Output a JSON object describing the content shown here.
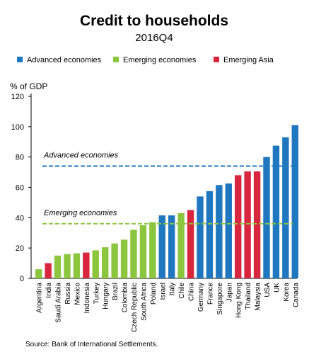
{
  "chart_data": {
    "type": "bar",
    "title": "Credit to households",
    "subtitle": "2016Q4",
    "ylabel": "% of GDP",
    "ylim": [
      0,
      120
    ],
    "yticks": [
      0,
      20,
      40,
      60,
      80,
      100,
      120
    ],
    "legend": [
      {
        "name": "Advanced economies",
        "color": "#1f77c0"
      },
      {
        "name": "Emerging economies",
        "color": "#8cc63f"
      },
      {
        "name": "Emerging Asia",
        "color": "#d7263d"
      }
    ],
    "legend_position": "top",
    "categories": [
      "Argentina",
      "India",
      "Saudi Arabia",
      "Russia",
      "Mexico",
      "Indonesia",
      "Turkey",
      "Hungary",
      "Brazil",
      "Colombia",
      "Czech Republic",
      "South Africa",
      "Poland",
      "Israel",
      "Italy",
      "Chile",
      "China",
      "Germany",
      "France",
      "Singapore",
      "Japan",
      "Hong Kong",
      "Thailand",
      "Malaysia",
      "USA",
      "UK",
      "Korea",
      "Canada"
    ],
    "values": [
      6,
      10,
      15,
      16,
      16.5,
      17,
      18.5,
      20.5,
      23,
      25.5,
      32,
      35,
      37,
      41.5,
      41.5,
      43,
      45,
      54,
      57.5,
      61.5,
      62.5,
      68,
      70.5,
      70.5,
      80,
      87.5,
      93,
      101
    ],
    "groups": [
      "Emerging economies",
      "Emerging Asia",
      "Emerging economies",
      "Emerging economies",
      "Emerging economies",
      "Emerging Asia",
      "Emerging economies",
      "Emerging economies",
      "Emerging economies",
      "Emerging economies",
      "Emerging economies",
      "Emerging economies",
      "Emerging economies",
      "Advanced economies",
      "Advanced economies",
      "Emerging economies",
      "Emerging Asia",
      "Advanced economies",
      "Advanced economies",
      "Advanced economies",
      "Advanced economies",
      "Emerging Asia",
      "Emerging Asia",
      "Emerging Asia",
      "Advanced economies",
      "Advanced economies",
      "Advanced economies",
      "Advanced economies"
    ],
    "reference_lines": [
      {
        "label": "Advanced economies",
        "value": 74,
        "color": "#1f77c0",
        "style": "dashed"
      },
      {
        "label": "Emerging economies",
        "value": 36,
        "color": "#8cc63f",
        "style": "dashed"
      }
    ],
    "grid": false
  },
  "source": "Source: Bank of International Settlements."
}
